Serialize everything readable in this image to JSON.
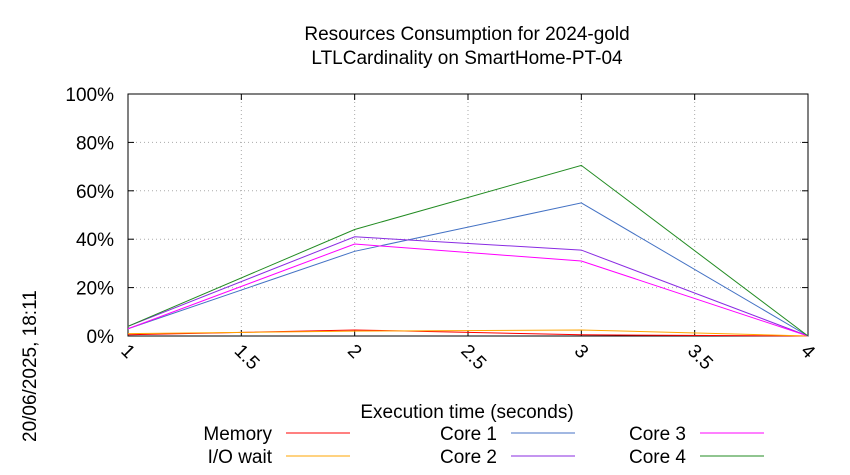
{
  "chart_data": {
    "type": "line",
    "title": [
      "Resources Consumption for 2024-gold",
      "LTLCardinality on SmartHome-PT-04"
    ],
    "xlabel": "Execution time (seconds)",
    "ylabel": "",
    "side_label": "20/06/2025, 18:11",
    "xlim": [
      1,
      4
    ],
    "ylim": [
      0,
      100
    ],
    "x_ticks": [
      {
        "value": 1,
        "label": "1"
      },
      {
        "value": 1.5,
        "label": "1.5"
      },
      {
        "value": 2,
        "label": "2"
      },
      {
        "value": 2.5,
        "label": "2.5"
      },
      {
        "value": 3,
        "label": "3"
      },
      {
        "value": 3.5,
        "label": "3.5"
      },
      {
        "value": 4,
        "label": "4"
      }
    ],
    "y_ticks": [
      {
        "value": 0,
        "label": "0%"
      },
      {
        "value": 20,
        "label": "20%"
      },
      {
        "value": 40,
        "label": "40%"
      },
      {
        "value": 60,
        "label": "60%"
      },
      {
        "value": 80,
        "label": "80%"
      },
      {
        "value": 100,
        "label": "100%"
      }
    ],
    "grid": true,
    "legend_position": "bottom",
    "x": [
      1,
      2,
      3,
      4
    ],
    "series": [
      {
        "name": "Memory",
        "color": "#ff0000",
        "values": [
          0.5,
          2.5,
          0.5,
          0
        ]
      },
      {
        "name": "I/O wait",
        "color": "#ffa500",
        "values": [
          1,
          2,
          2.5,
          0
        ]
      },
      {
        "name": "Core 1",
        "color": "#4472c4",
        "values": [
          3,
          35,
          55,
          0
        ]
      },
      {
        "name": "Core 2",
        "color": "#8a2be2",
        "values": [
          4,
          41,
          35.5,
          0
        ]
      },
      {
        "name": "Core 3",
        "color": "#ff00ff",
        "values": [
          3,
          38,
          31,
          0
        ]
      },
      {
        "name": "Core 4",
        "color": "#228b22",
        "values": [
          4,
          44,
          70.5,
          0
        ]
      }
    ]
  }
}
